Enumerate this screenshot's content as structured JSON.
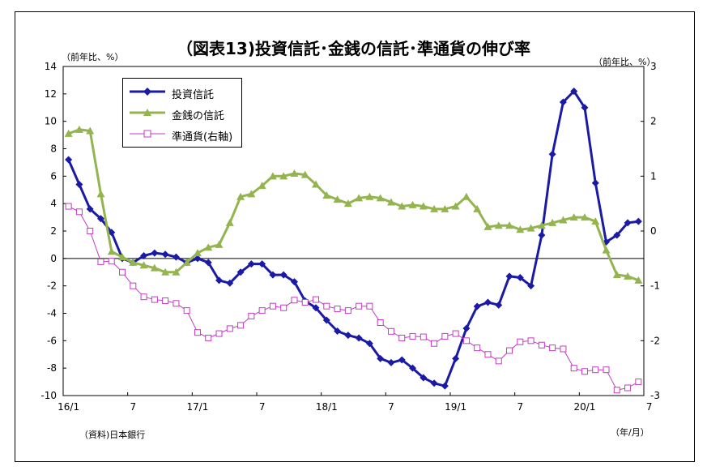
{
  "title": "（図表13)投資信託･金銭の信託･準通貨の伸び率",
  "left_unit": "（前年比、%）",
  "right_unit": "（前年比、%）",
  "source": "（資料)日本銀行",
  "x_unit": "（年/月）",
  "chart_data": {
    "type": "line",
    "title": "（図表13)投資信託･金銭の信託･準通貨の伸び率",
    "x_tick_labels": [
      "16/1",
      "7",
      "17/1",
      "7",
      "18/1",
      "7",
      "19/1",
      "7",
      "20/1",
      "7"
    ],
    "left_axis": {
      "ylim": [
        -10,
        14
      ],
      "ticks": [
        -10,
        -8,
        -6,
        -4,
        -2,
        0,
        2,
        4,
        6,
        8,
        10,
        12,
        14
      ]
    },
    "right_axis": {
      "ylim": [
        -3,
        3
      ],
      "ticks": [
        -3,
        -2,
        -1,
        0,
        1,
        2,
        3
      ]
    },
    "grid": false,
    "legend_position": "top-left",
    "series": [
      {
        "name": "投資信託",
        "axis": "left",
        "color": "#1a1aa6",
        "marker": "diamond",
        "values": [
          7.2,
          5.4,
          3.6,
          2.9,
          1.9,
          0.0,
          -0.3,
          0.2,
          0.4,
          0.3,
          0.1,
          -0.3,
          0.0,
          -0.3,
          -1.6,
          -1.8,
          -1.0,
          -0.4,
          -0.4,
          -1.2,
          -1.2,
          -1.7,
          -3.1,
          -3.6,
          -4.5,
          -5.3,
          -5.6,
          -5.8,
          -6.2,
          -7.3,
          -7.6,
          -7.4,
          -8.0,
          -8.7,
          -9.1,
          -9.3,
          -7.3,
          -5.1,
          -3.5,
          -3.2,
          -3.4,
          -1.3,
          -1.4,
          -2.0,
          1.7,
          7.6,
          11.4,
          12.2,
          11.0,
          5.5,
          1.2,
          1.7,
          2.6,
          2.7
        ]
      },
      {
        "name": "金銭の信託",
        "axis": "left",
        "color": "#93b44e",
        "marker": "triangle",
        "values": [
          9.1,
          9.4,
          9.3,
          4.7,
          0.5,
          0.1,
          -0.3,
          -0.5,
          -0.7,
          -1.0,
          -1.0,
          -0.3,
          0.4,
          0.8,
          1.0,
          2.6,
          4.5,
          4.7,
          5.3,
          6.0,
          6.0,
          6.2,
          6.1,
          5.4,
          4.6,
          4.3,
          4.0,
          4.4,
          4.5,
          4.4,
          4.1,
          3.8,
          3.9,
          3.8,
          3.6,
          3.6,
          3.8,
          4.5,
          3.6,
          2.3,
          2.4,
          2.4,
          2.1,
          2.2,
          2.4,
          2.6,
          2.8,
          3.0,
          3.0,
          2.7,
          0.6,
          -1.2,
          -1.3,
          -1.6
        ]
      },
      {
        "name": "準通貨(右軸)",
        "axis": "right",
        "color": "#c23cc2",
        "marker": "square-open",
        "values": [
          0.45,
          0.35,
          0.0,
          -0.56,
          -0.55,
          -0.75,
          -1.0,
          -1.2,
          -1.25,
          -1.27,
          -1.32,
          -1.45,
          -1.85,
          -1.95,
          -1.87,
          -1.78,
          -1.72,
          -1.55,
          -1.45,
          -1.37,
          -1.4,
          -1.26,
          -1.3,
          -1.25,
          -1.37,
          -1.42,
          -1.45,
          -1.37,
          -1.37,
          -1.67,
          -1.83,
          -1.95,
          -1.92,
          -1.93,
          -2.05,
          -1.92,
          -1.87,
          -2.0,
          -2.13,
          -2.25,
          -2.37,
          -2.18,
          -2.02,
          -2.0,
          -2.08,
          -2.13,
          -2.15,
          -2.5,
          -2.56,
          -2.53,
          -2.53,
          -2.9,
          -2.86,
          -2.75
        ]
      }
    ]
  }
}
